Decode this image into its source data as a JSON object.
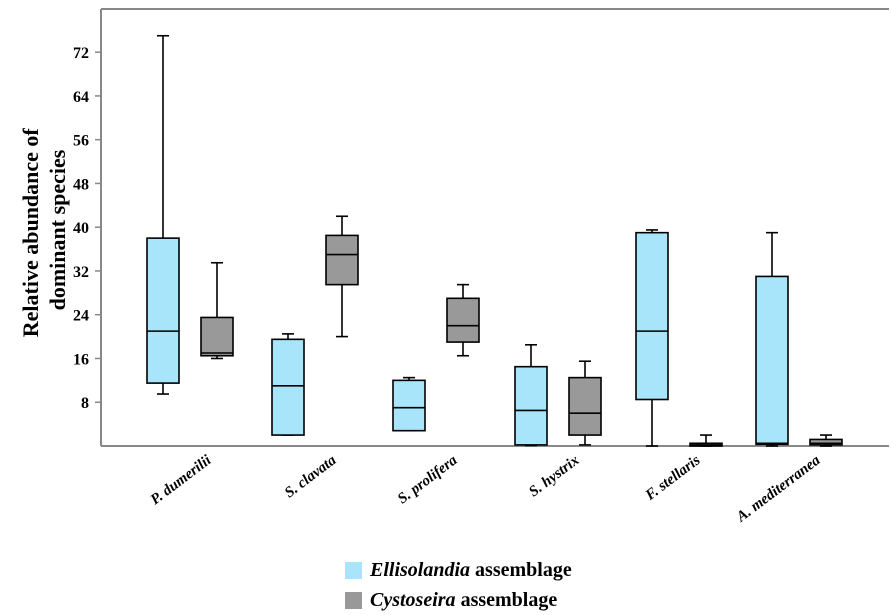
{
  "chart_data": {
    "type": "box",
    "ylabel_lines": [
      "Relative abundance of",
      "dominant species"
    ],
    "yticks": [
      8,
      16,
      24,
      32,
      40,
      48,
      56,
      64,
      72
    ],
    "ylim": [
      0,
      80
    ],
    "categories": [
      "P. dumerilii",
      "S. clavata",
      "S. prolifera",
      "S. hystrix",
      "F. stellaris",
      "A. mediterranea"
    ],
    "series": [
      {
        "name_italic": "Ellisolandia",
        "name_rest": " assemblage",
        "color": "#a8e4fa",
        "boxes": [
          {
            "min": 9.5,
            "q1": 11.5,
            "median": 21.0,
            "q3": 38.0,
            "max": 75.0
          },
          {
            "min": 2.0,
            "q1": 2.0,
            "median": 11.0,
            "q3": 19.5,
            "max": 20.5
          },
          {
            "min": 2.8,
            "q1": 2.8,
            "median": 7.0,
            "q3": 12.0,
            "max": 12.5
          },
          {
            "min": 0.1,
            "q1": 0.2,
            "median": 6.5,
            "q3": 14.5,
            "max": 18.5
          },
          {
            "min": 0.0,
            "q1": 8.5,
            "median": 21.0,
            "q3": 39.0,
            "max": 39.5
          },
          {
            "min": 0.0,
            "q1": 0.3,
            "median": 0.5,
            "q3": 31.0,
            "max": 39.0
          }
        ]
      },
      {
        "name_italic": "Cystoseira",
        "name_rest": " assemblage",
        "color": "#999999",
        "boxes": [
          {
            "min": 16.0,
            "q1": 16.5,
            "median": 17.0,
            "q3": 23.5,
            "max": 33.5
          },
          {
            "min": 20.0,
            "q1": 29.5,
            "median": 35.0,
            "q3": 38.5,
            "max": 42.0
          },
          {
            "min": 16.5,
            "q1": 19.0,
            "median": 22.0,
            "q3": 27.0,
            "max": 29.5
          },
          {
            "min": 0.2,
            "q1": 2.0,
            "median": 6.0,
            "q3": 12.5,
            "max": 15.5
          },
          {
            "min": 0.0,
            "q1": 0.0,
            "median": 0.2,
            "q3": 0.5,
            "max": 2.0
          },
          {
            "min": 0.0,
            "q1": 0.2,
            "median": 0.5,
            "q3": 1.2,
            "max": 2.0
          }
        ]
      }
    ]
  }
}
